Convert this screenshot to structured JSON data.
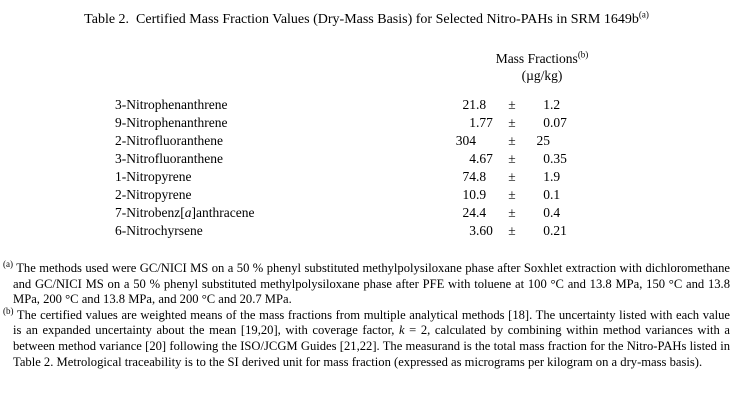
{
  "title": {
    "text": "Table 2.  Certified Mass Fraction Values (Dry-Mass Basis) for Selected Nitro-PAHs in SRM 1649b",
    "superscript": "(a)"
  },
  "table": {
    "header": {
      "line1": "Mass Fractions",
      "line1_superscript": "(b)",
      "line2": "(µg/kg)"
    },
    "rows": [
      {
        "name": "3-Nitrophenanthrene",
        "value": "21.8",
        "pm": "±",
        "uncertainty": "1.2"
      },
      {
        "name": "9-Nitrophenanthrene",
        "value": "1.77",
        "pm": "±",
        "uncertainty": "0.07"
      },
      {
        "name": "2-Nitrofluoranthene",
        "value": "304",
        "pm": "±",
        "uncertainty": "25"
      },
      {
        "name": "3-Nitrofluoranthene",
        "value": "4.67",
        "pm": "±",
        "uncertainty": "0.35"
      },
      {
        "name": "1-Nitropyrene",
        "value": "74.8",
        "pm": "±",
        "uncertainty": "1.9"
      },
      {
        "name": "2-Nitropyrene",
        "value": "10.9",
        "pm": "±",
        "uncertainty": "0.1"
      },
      {
        "name": "7-Nitrobenz[a]anthracene",
        "value": "24.4",
        "pm": "±",
        "uncertainty": "0.4"
      },
      {
        "name": "6-Nitrochyrsene",
        "value": "3.60",
        "pm": "±",
        "uncertainty": "0.21"
      }
    ]
  },
  "footnotes": [
    {
      "marker": "(a)",
      "segments": [
        {
          "text": "The methods used were GC/NICI MS on a 50 % phenyl substituted methylpolysiloxane phase after Soxhlet extraction with dichloromethane and GC/NICI MS on a 50 % phenyl substituted methylpolysiloxane phase after PFE with toluene at 100 °C and 13.8 MPa, 150 °C and 13.8 MPa, 200 °C and 13.8 MPa, and 200 °C and 20.7 MPa.",
          "italic": false
        }
      ]
    },
    {
      "marker": "(b)",
      "segments": [
        {
          "text": "The certified values are weighted means of the mass fractions from multiple analytical methods [18].  The uncertainty listed with each value is an expanded uncertainty about the mean [19,20], with coverage factor, ",
          "italic": false
        },
        {
          "text": "k",
          "italic": true
        },
        {
          "text": " = 2, calculated by combining within method variances with a between method variance [20] following the ISO/JCGM Guides [21,22].  The measurand is the total mass fraction for the Nitro-PAHs listed in Table 2.  Metrological traceability is to the SI derived unit for mass fraction (expressed as micrograms per kilogram on a dry-mass basis).",
          "italic": false
        }
      ]
    }
  ]
}
